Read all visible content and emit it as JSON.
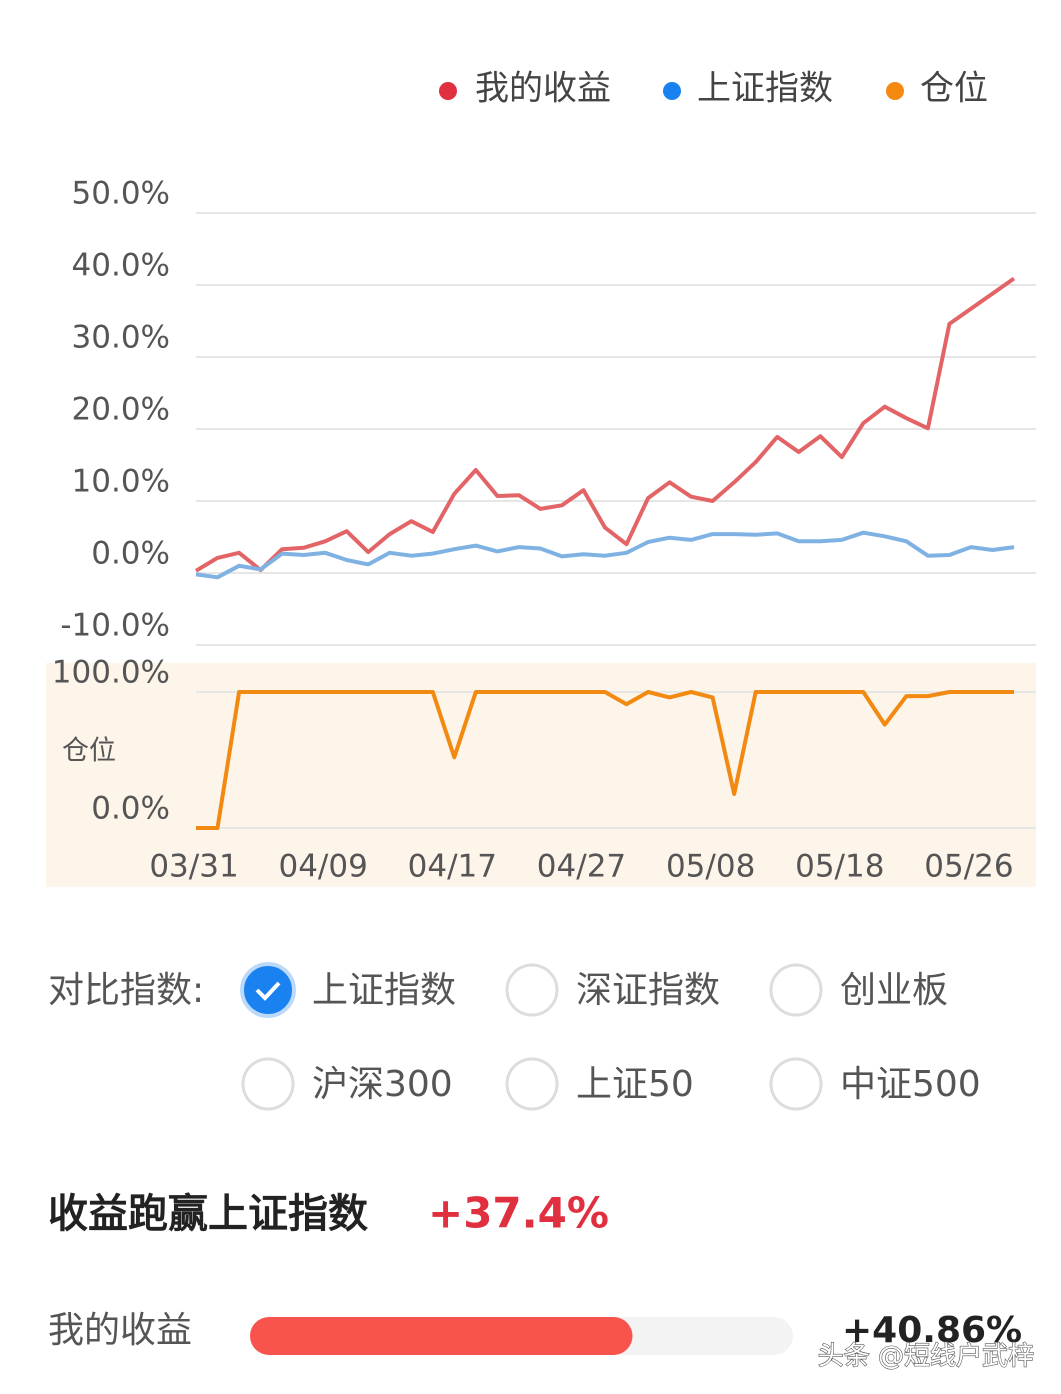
{
  "chart_data": [
    {
      "type": "line",
      "series": [
        {
          "name": "我的收益",
          "color": "#e36466",
          "legend_color": "#e0303f",
          "values": [
            0.3,
            2.1,
            2.8,
            0.4,
            3.3,
            3.5,
            4.4,
            5.8,
            2.9,
            5.4,
            7.2,
            5.7,
            11.0,
            14.3,
            10.7,
            10.8,
            8.9,
            9.4,
            11.5,
            6.3,
            4.0,
            10.4,
            12.6,
            10.6,
            10.0,
            12.6,
            15.4,
            18.9,
            16.8,
            19.0,
            16.1,
            20.8,
            23.1,
            21.5,
            20.1,
            34.6,
            36.7,
            38.8,
            40.9
          ]
        },
        {
          "name": "上证指数",
          "color": "#7fb2e3",
          "legend_color": "#1a82f0",
          "values": [
            -0.2,
            -0.6,
            1.0,
            0.5,
            2.7,
            2.5,
            2.8,
            1.8,
            1.2,
            2.8,
            2.4,
            2.7,
            3.3,
            3.8,
            3.0,
            3.6,
            3.4,
            2.3,
            2.6,
            2.4,
            2.8,
            4.3,
            4.9,
            4.6,
            5.4,
            5.4,
            5.3,
            5.5,
            4.4,
            4.4,
            4.6,
            5.6,
            5.1,
            4.4,
            2.4,
            2.5,
            3.6,
            3.2,
            3.6
          ]
        }
      ],
      "ylim": [
        -10,
        50
      ],
      "yticks": [
        {
          "value": 50,
          "label": "50.0%"
        },
        {
          "value": 40,
          "label": "40.0%"
        },
        {
          "value": 30,
          "label": "30.0%"
        },
        {
          "value": 20,
          "label": "20.0%"
        },
        {
          "value": 10,
          "label": "10.0%"
        },
        {
          "value": 0,
          "label": "0.0%"
        },
        {
          "value": -10,
          "label": "-10.0%"
        }
      ],
      "grid": true
    },
    {
      "type": "line",
      "y_label": "仓位",
      "categories": [
        "03/31",
        null,
        null,
        null,
        null,
        null,
        "04/09",
        null,
        null,
        null,
        null,
        null,
        "04/17",
        null,
        null,
        null,
        null,
        null,
        "04/27",
        null,
        null,
        null,
        null,
        null,
        "05/08",
        null,
        null,
        null,
        null,
        null,
        "05/18",
        null,
        null,
        null,
        null,
        null,
        "05/26",
        null,
        null
      ],
      "series": [
        {
          "name": "仓位",
          "color": "#f28a12",
          "legend_color": "#f5890f",
          "values": [
            0,
            0,
            100,
            100,
            100,
            100,
            100,
            100,
            100,
            100,
            100,
            100,
            52,
            100,
            100,
            100,
            100,
            100,
            100,
            100,
            91,
            100,
            96,
            100,
            96,
            25,
            100,
            100,
            100,
            100,
            100,
            100,
            76,
            97,
            97,
            100,
            100,
            100,
            100
          ]
        }
      ],
      "ylim": [
        0,
        100
      ],
      "yticks": [
        {
          "value": 100,
          "label": "100.0%"
        },
        {
          "value": 0,
          "label": "0.0%"
        }
      ],
      "grid": true
    }
  ],
  "compare": {
    "label": "对比指数:",
    "options": [
      {
        "label": "上证指数",
        "checked": true
      },
      {
        "label": "深证指数",
        "checked": false
      },
      {
        "label": "创业板",
        "checked": false
      },
      {
        "label": "沪深300",
        "checked": false
      },
      {
        "label": "上证50",
        "checked": false
      },
      {
        "label": "中证500",
        "checked": false
      }
    ]
  },
  "summary": {
    "text": "收益跑赢上证指数",
    "value": "+37.4%"
  },
  "bar": {
    "label": "我的收益",
    "value": 40.86,
    "value_label": "+40.86%",
    "xlim": [
      0,
      58
    ],
    "color": "#f9534e"
  },
  "watermark": "头条 @短线户武梓"
}
